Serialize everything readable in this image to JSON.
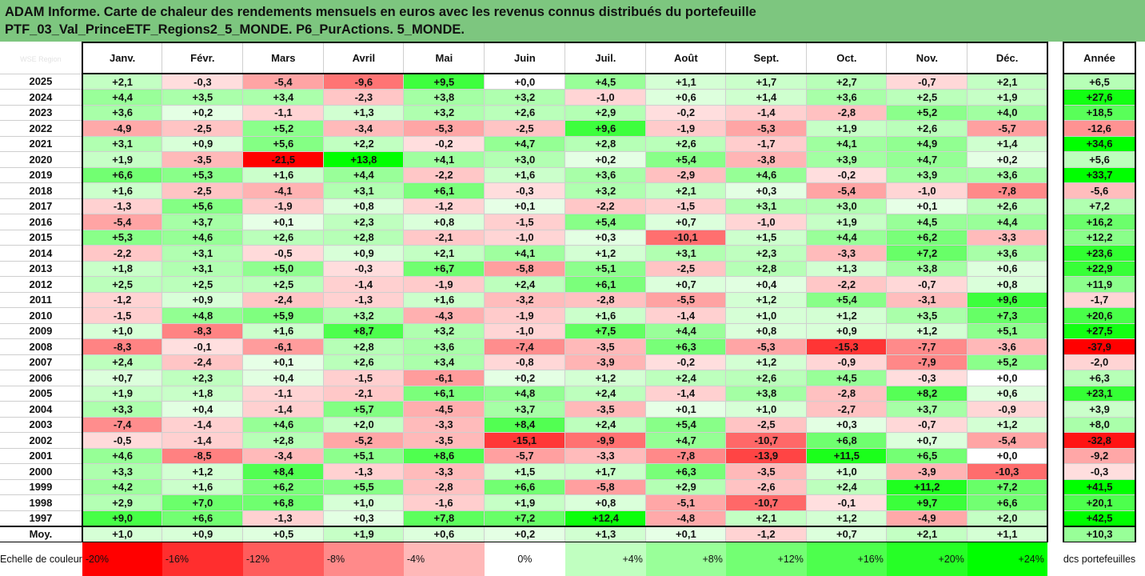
{
  "title_line1": "ADAM Informe. Carte de chaleur des rendements mensuels en euros avec les revenus connus distribués du portefeuille",
  "title_line2": "PTF_03_Val_PrinceETF_Regions2_5_MONDE. P6_PurActions. 5_MONDE.",
  "header_left": "WSE Region",
  "year_col_label": "Année",
  "avg_label": "Moy.",
  "scale_label": "Echelle de couleur",
  "watermark": "dcs portefeuilles",
  "colors": {
    "neg_max": "#ff0000",
    "pos_max": "#00ff00",
    "neutral": "#ffffff"
  },
  "chart_data": {
    "type": "heatmap",
    "title": "ADAM Informe. Carte de chaleur des rendements mensuels en euros avec les revenus connus distribués du portefeuille PTF_03_Val_PrinceETF_Regions2_5_MONDE. P6_PurActions. 5_MONDE.",
    "months": [
      "Janv.",
      "Févr.",
      "Mars",
      "Avril",
      "Mai",
      "Juin",
      "Juil.",
      "Août",
      "Sept.",
      "Oct.",
      "Nov.",
      "Déc."
    ],
    "rows": [
      {
        "year": "2025",
        "months": [
          "+2,1",
          "-0,3",
          "-5,4",
          "-9,6",
          "+9,5",
          "+0,0",
          "+4,5",
          "+1,1",
          "+1,7",
          "+2,7",
          "-0,7",
          "+2,1"
        ],
        "annual": "+6,5"
      },
      {
        "year": "2024",
        "months": [
          "+4,4",
          "+3,5",
          "+3,4",
          "-2,3",
          "+3,8",
          "+3,2",
          "-1,0",
          "+0,6",
          "+1,4",
          "+3,6",
          "+2,5",
          "+1,9"
        ],
        "annual": "+27,6"
      },
      {
        "year": "2023",
        "months": [
          "+3,6",
          "+0,2",
          "-1,1",
          "+1,3",
          "+3,2",
          "+2,6",
          "+2,9",
          "-0,2",
          "-1,4",
          "-2,8",
          "+5,2",
          "+4,0"
        ],
        "annual": "+18,5"
      },
      {
        "year": "2022",
        "months": [
          "-4,9",
          "-2,5",
          "+5,2",
          "-3,4",
          "-5,3",
          "-2,5",
          "+9,6",
          "-1,9",
          "-5,3",
          "+1,9",
          "+2,6",
          "-5,7"
        ],
        "annual": "-12,6"
      },
      {
        "year": "2021",
        "months": [
          "+3,1",
          "+0,9",
          "+5,6",
          "+2,2",
          "-0,2",
          "+4,7",
          "+2,8",
          "+2,6",
          "-1,7",
          "+4,1",
          "+4,9",
          "+1,4"
        ],
        "annual": "+34,6"
      },
      {
        "year": "2020",
        "months": [
          "+1,9",
          "-3,5",
          "-21,5",
          "+13,8",
          "+4,1",
          "+3,0",
          "+0,2",
          "+5,4",
          "-3,8",
          "+3,9",
          "+4,7",
          "+0,2"
        ],
        "annual": "+5,6"
      },
      {
        "year": "2019",
        "months": [
          "+6,6",
          "+5,3",
          "+1,6",
          "+4,4",
          "-2,2",
          "+1,6",
          "+3,6",
          "-2,9",
          "+4,6",
          "-0,2",
          "+3,9",
          "+3,6"
        ],
        "annual": "+33,7"
      },
      {
        "year": "2018",
        "months": [
          "+1,6",
          "-2,5",
          "-4,1",
          "+3,1",
          "+6,1",
          "-0,3",
          "+3,2",
          "+2,1",
          "+0,3",
          "-5,4",
          "-1,0",
          "-7,8"
        ],
        "annual": "-5,6"
      },
      {
        "year": "2017",
        "months": [
          "-1,3",
          "+5,6",
          "-1,9",
          "+0,8",
          "-1,2",
          "+0,1",
          "-2,2",
          "-1,5",
          "+3,1",
          "+3,0",
          "+0,1",
          "+2,6"
        ],
        "annual": "+7,2"
      },
      {
        "year": "2016",
        "months": [
          "-5,4",
          "+3,7",
          "+0,1",
          "+2,3",
          "+0,8",
          "-1,5",
          "+5,4",
          "+0,7",
          "-1,0",
          "+1,9",
          "+4,5",
          "+4,4"
        ],
        "annual": "+16,2"
      },
      {
        "year": "2015",
        "months": [
          "+5,3",
          "+4,6",
          "+2,6",
          "+2,8",
          "-2,1",
          "-1,0",
          "+0,3",
          "-10,1",
          "+1,5",
          "+4,4",
          "+6,2",
          "-3,3"
        ],
        "annual": "+12,2"
      },
      {
        "year": "2014",
        "months": [
          "-2,2",
          "+3,1",
          "-0,5",
          "+0,9",
          "+2,1",
          "+4,1",
          "+1,2",
          "+3,1",
          "+2,3",
          "-3,3",
          "+7,2",
          "+3,6"
        ],
        "annual": "+23,6"
      },
      {
        "year": "2013",
        "months": [
          "+1,8",
          "+3,1",
          "+5,0",
          "-0,3",
          "+6,7",
          "-5,8",
          "+5,1",
          "-2,5",
          "+2,8",
          "+1,3",
          "+3,8",
          "+0,6"
        ],
        "annual": "+22,9"
      },
      {
        "year": "2012",
        "months": [
          "+2,5",
          "+2,5",
          "+2,5",
          "-1,4",
          "-1,9",
          "+2,4",
          "+6,1",
          "+0,7",
          "+0,4",
          "-2,2",
          "-0,7",
          "+0,8"
        ],
        "annual": "+11,9"
      },
      {
        "year": "2011",
        "months": [
          "-1,2",
          "+0,9",
          "-2,4",
          "-1,3",
          "+1,6",
          "-3,2",
          "-2,8",
          "-5,5",
          "+1,2",
          "+5,4",
          "-3,1",
          "+9,6"
        ],
        "annual": "-1,7"
      },
      {
        "year": "2010",
        "months": [
          "-1,5",
          "+4,8",
          "+5,9",
          "+3,2",
          "-4,3",
          "-1,9",
          "+1,6",
          "-1,4",
          "+1,0",
          "+1,2",
          "+3,5",
          "+7,3"
        ],
        "annual": "+20,6"
      },
      {
        "year": "2009",
        "months": [
          "+1,0",
          "-8,3",
          "+1,6",
          "+8,7",
          "+3,2",
          "-1,0",
          "+7,5",
          "+4,4",
          "+0,8",
          "+0,9",
          "+1,2",
          "+5,1"
        ],
        "annual": "+27,5"
      },
      {
        "year": "2008",
        "months": [
          "-8,3",
          "-0,1",
          "-6,1",
          "+2,8",
          "+3,6",
          "-7,4",
          "-3,5",
          "+6,3",
          "-5,3",
          "-15,3",
          "-7,7",
          "-3,6"
        ],
        "annual": "-37,9"
      },
      {
        "year": "2007",
        "months": [
          "+2,4",
          "-2,4",
          "+0,1",
          "+2,6",
          "+3,4",
          "-0,8",
          "-3,9",
          "-0,2",
          "+1,2",
          "-0,9",
          "-7,9",
          "+5,2"
        ],
        "annual": "-2,0"
      },
      {
        "year": "2006",
        "months": [
          "+0,7",
          "+2,3",
          "+0,4",
          "-1,5",
          "-6,1",
          "+0,2",
          "+1,2",
          "+2,4",
          "+2,6",
          "+4,5",
          "-0,3",
          "+0,0"
        ],
        "annual": "+6,3"
      },
      {
        "year": "2005",
        "months": [
          "+1,9",
          "+1,8",
          "-1,1",
          "-2,1",
          "+6,1",
          "+4,8",
          "+2,4",
          "-1,4",
          "+3,8",
          "-2,8",
          "+8,2",
          "+0,6"
        ],
        "annual": "+23,1"
      },
      {
        "year": "2004",
        "months": [
          "+3,3",
          "+0,4",
          "-1,4",
          "+5,7",
          "-4,5",
          "+3,7",
          "-3,5",
          "+0,1",
          "+1,0",
          "-2,7",
          "+3,7",
          "-0,9"
        ],
        "annual": "+3,9"
      },
      {
        "year": "2003",
        "months": [
          "-7,4",
          "-1,4",
          "+4,6",
          "+2,0",
          "-3,3",
          "+8,4",
          "+2,4",
          "+5,4",
          "-2,5",
          "+0,3",
          "-0,7",
          "+1,2"
        ],
        "annual": "+8,0"
      },
      {
        "year": "2002",
        "months": [
          "-0,5",
          "-1,4",
          "+2,8",
          "-5,2",
          "-3,5",
          "-15,1",
          "-9,9",
          "+4,7",
          "-10,7",
          "+6,8",
          "+0,7",
          "-5,4"
        ],
        "annual": "-32,8"
      },
      {
        "year": "2001",
        "months": [
          "+4,6",
          "-8,5",
          "-3,4",
          "+5,1",
          "+8,6",
          "-5,7",
          "-3,3",
          "-7,8",
          "-13,9",
          "+11,5",
          "+6,5",
          "+0,0"
        ],
        "annual": "-9,2"
      },
      {
        "year": "2000",
        "months": [
          "+3,3",
          "+1,2",
          "+8,4",
          "-1,3",
          "-3,3",
          "+1,5",
          "+1,7",
          "+6,3",
          "-3,5",
          "+1,0",
          "-3,9",
          "-10,3"
        ],
        "annual": "-0,3"
      },
      {
        "year": "1999",
        "months": [
          "+4,2",
          "+1,6",
          "+6,2",
          "+5,5",
          "-2,8",
          "+6,6",
          "-5,8",
          "+2,9",
          "-2,6",
          "+2,4",
          "+11,2",
          "+7,2"
        ],
        "annual": "+41,5"
      },
      {
        "year": "1998",
        "months": [
          "+2,9",
          "+7,0",
          "+6,8",
          "+1,0",
          "-1,6",
          "+1,9",
          "+0,8",
          "-5,1",
          "-10,7",
          "-0,1",
          "+9,7",
          "+6,6"
        ],
        "annual": "+20,1"
      },
      {
        "year": "1997",
        "months": [
          "+9,0",
          "+6,6",
          "-1,3",
          "+0,3",
          "+7,8",
          "+7,2",
          "+12,4",
          "-4,8",
          "+2,1",
          "+1,2",
          "-4,9",
          "+2,0"
        ],
        "annual": "+42,5"
      }
    ],
    "average": {
      "months": [
        "+1,0",
        "+0,9",
        "+0,5",
        "+1,9",
        "+0,6",
        "+0,2",
        "+1,3",
        "+0,1",
        "-1,2",
        "+0,7",
        "+2,1",
        "+1,1"
      ],
      "annual": "+10,3"
    },
    "scale": [
      "-20%",
      "-16%",
      "-12%",
      "-8%",
      "-4%",
      "0%",
      "+4%",
      "+8%",
      "+12%",
      "+16%",
      "+20%",
      "+24%"
    ]
  }
}
